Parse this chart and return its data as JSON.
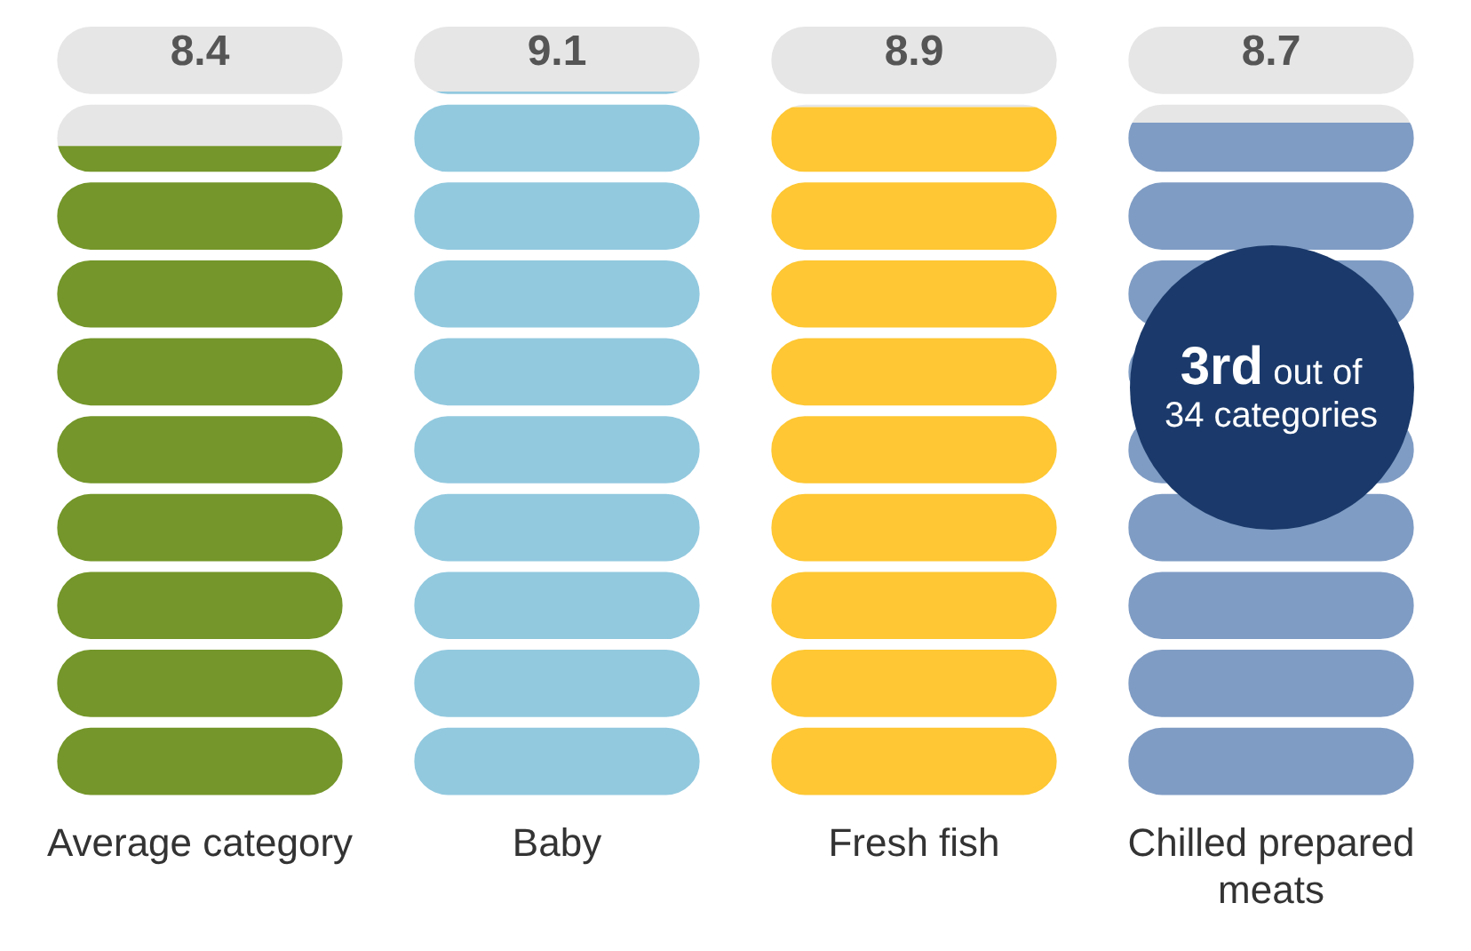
{
  "chart_data": {
    "type": "bar",
    "categories": [
      "Average category",
      "Baby",
      "Fresh fish",
      "Chilled prepared meats"
    ],
    "series": [
      {
        "colors": [
          "#74962a",
          "#92c9df",
          "#fec733",
          "#7f9cc4"
        ],
        "values": [
          8.4,
          9.1,
          8.9,
          8.7
        ],
        "value_labels": [
          "8.4",
          "9.1",
          "8.9",
          "8.7"
        ]
      },
      {
        "color": "#e6e6e6",
        "values": [
          1.6,
          0.9,
          1.1,
          1.3
        ]
      }
    ],
    "stacked": true,
    "ylim": [
      0,
      10
    ],
    "tick_labels": "x",
    "grid": false,
    "legend": false,
    "annotations": [
      "3rd out of 34 categories"
    ]
  }
}
